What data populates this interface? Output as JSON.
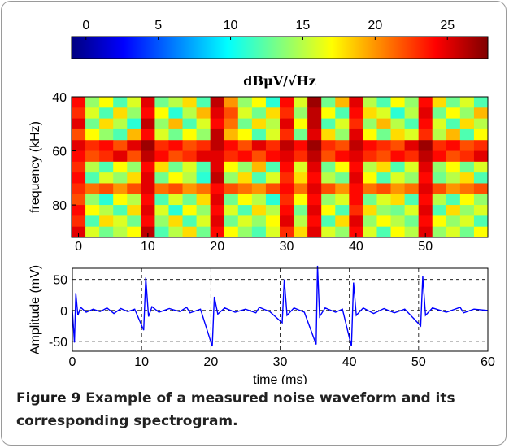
{
  "figure": {
    "label": "Figure 9",
    "caption": "Example of a measured noise waveform and its corresponding spectrogram."
  },
  "chart_data": [
    {
      "type": "heatmap",
      "xlim": [
        -1,
        59
      ],
      "xticks": [
        0,
        10,
        20,
        30,
        40,
        50
      ],
      "ylim": [
        40,
        92
      ],
      "yticks": [
        40,
        60,
        80
      ],
      "ylabel": "frequency (kHz)",
      "colormap": "jet",
      "colorbar": {
        "label": "dBμV/√Hz",
        "lim": [
          -1,
          27.8
        ],
        "ticks": [
          0,
          5,
          10,
          15,
          20,
          25
        ]
      },
      "z": [
        [
          24,
          14,
          17,
          12,
          16,
          25,
          13,
          15,
          18,
          12,
          26,
          20,
          14,
          17,
          11,
          24,
          16,
          27,
          13,
          19,
          25,
          15,
          12,
          17,
          14,
          24,
          18,
          13,
          16,
          12
        ],
        [
          23,
          16,
          12,
          18,
          14,
          24,
          17,
          11,
          15,
          19,
          25,
          22,
          16,
          13,
          18,
          23,
          14,
          26,
          17,
          12,
          24,
          18,
          16,
          11,
          15,
          25,
          13,
          17,
          14,
          19
        ],
        [
          25,
          13,
          18,
          15,
          11,
          26,
          14,
          19,
          12,
          16,
          24,
          21,
          13,
          18,
          15,
          25,
          17,
          26,
          12,
          16,
          23,
          14,
          19,
          15,
          12,
          24,
          16,
          12,
          18,
          15
        ],
        [
          22,
          17,
          14,
          12,
          19,
          24,
          16,
          13,
          17,
          14,
          26,
          19,
          17,
          12,
          16,
          23,
          13,
          25,
          18,
          14,
          25,
          17,
          13,
          18,
          16,
          23,
          15,
          19,
          12,
          17
        ],
        [
          25,
          23,
          24,
          22,
          25,
          27,
          23,
          24,
          22,
          23,
          26,
          24,
          22,
          25,
          23,
          26,
          24,
          27,
          23,
          22,
          26,
          24,
          23,
          22,
          25,
          27,
          23,
          24,
          22,
          23
        ],
        [
          24,
          22,
          23,
          25,
          22,
          26,
          24,
          22,
          23,
          25,
          25,
          23,
          24,
          22,
          24,
          25,
          23,
          26,
          22,
          24,
          25,
          23,
          22,
          24,
          23,
          26,
          24,
          22,
          23,
          25
        ],
        [
          23,
          15,
          12,
          17,
          14,
          24,
          18,
          13,
          16,
          12,
          25,
          17,
          14,
          19,
          12,
          24,
          16,
          25,
          13,
          17,
          24,
          15,
          18,
          12,
          16,
          25,
          14,
          17,
          13,
          16
        ],
        [
          24,
          12,
          16,
          14,
          18,
          25,
          13,
          17,
          15,
          11,
          26,
          14,
          18,
          12,
          16,
          23,
          18,
          24,
          15,
          13,
          25,
          17,
          12,
          16,
          14,
          24,
          13,
          15,
          18,
          12
        ],
        [
          23,
          21,
          22,
          20,
          22,
          25,
          21,
          22,
          20,
          21,
          24,
          22,
          21,
          20,
          22,
          24,
          21,
          25,
          22,
          20,
          24,
          21,
          22,
          20,
          21,
          25,
          22,
          20,
          21,
          22
        ],
        [
          22,
          14,
          11,
          17,
          15,
          24,
          12,
          16,
          13,
          18,
          25,
          13,
          17,
          15,
          11,
          23,
          17,
          24,
          14,
          16,
          24,
          13,
          16,
          18,
          12,
          24,
          15,
          12,
          17,
          14
        ],
        [
          24,
          17,
          15,
          12,
          18,
          25,
          16,
          11,
          17,
          14,
          24,
          16,
          12,
          18,
          15,
          24,
          13,
          25,
          17,
          12,
          23,
          18,
          14,
          13,
          16,
          25,
          12,
          18,
          14,
          16
        ],
        [
          23,
          12,
          18,
          16,
          13,
          24,
          14,
          18,
          12,
          16,
          25,
          13,
          16,
          14,
          17,
          25,
          15,
          24,
          12,
          18,
          25,
          14,
          17,
          15,
          13,
          24,
          17,
          14,
          16,
          12
        ],
        [
          25,
          16,
          13,
          15,
          17,
          26,
          12,
          15,
          18,
          13,
          24,
          17,
          14,
          12,
          16,
          23,
          18,
          25,
          16,
          14,
          24,
          16,
          12,
          17,
          15,
          25,
          14,
          16,
          13,
          17
        ]
      ]
    },
    {
      "type": "line",
      "xlabel": "time (ms)",
      "ylabel": "Amplitude (mV)",
      "color": "#0000ff",
      "grid": true,
      "xlim": [
        0,
        60
      ],
      "xticks": [
        0,
        10,
        20,
        30,
        40,
        50,
        60
      ],
      "ylim": [
        -66,
        68
      ],
      "yticks": [
        -50,
        0,
        50
      ],
      "x": [
        0,
        0.3,
        0.5,
        0.8,
        1.2,
        2,
        3,
        4,
        5,
        6,
        7,
        8,
        9,
        10.3,
        10.6,
        11,
        11.5,
        12.5,
        14,
        15.5,
        16.5,
        17,
        18.5,
        20.2,
        20.5,
        21,
        22,
        23.5,
        25,
        26.5,
        27,
        28.5,
        30.3,
        30.6,
        31,
        32,
        33.5,
        35.2,
        35.4,
        35.7,
        36.5,
        38,
        39,
        40.3,
        40.6,
        41,
        42,
        43.5,
        45,
        46.5,
        48,
        50.3,
        50.6,
        51,
        52,
        54,
        56,
        56.5,
        58,
        60
      ],
      "values": [
        0,
        -52,
        28,
        -8,
        5,
        -3,
        2,
        -2,
        4,
        -5,
        3,
        -2,
        2,
        -32,
        53,
        -10,
        6,
        -3,
        3,
        -2,
        5,
        -4,
        2,
        -58,
        22,
        -6,
        4,
        -3,
        2,
        -4,
        5,
        -2,
        -20,
        50,
        -8,
        4,
        -3,
        -55,
        72,
        -10,
        4,
        -3,
        2,
        -58,
        45,
        -8,
        4,
        -5,
        3,
        -4,
        2,
        -25,
        55,
        -8,
        4,
        -3,
        5,
        -4,
        2,
        0
      ]
    }
  ]
}
